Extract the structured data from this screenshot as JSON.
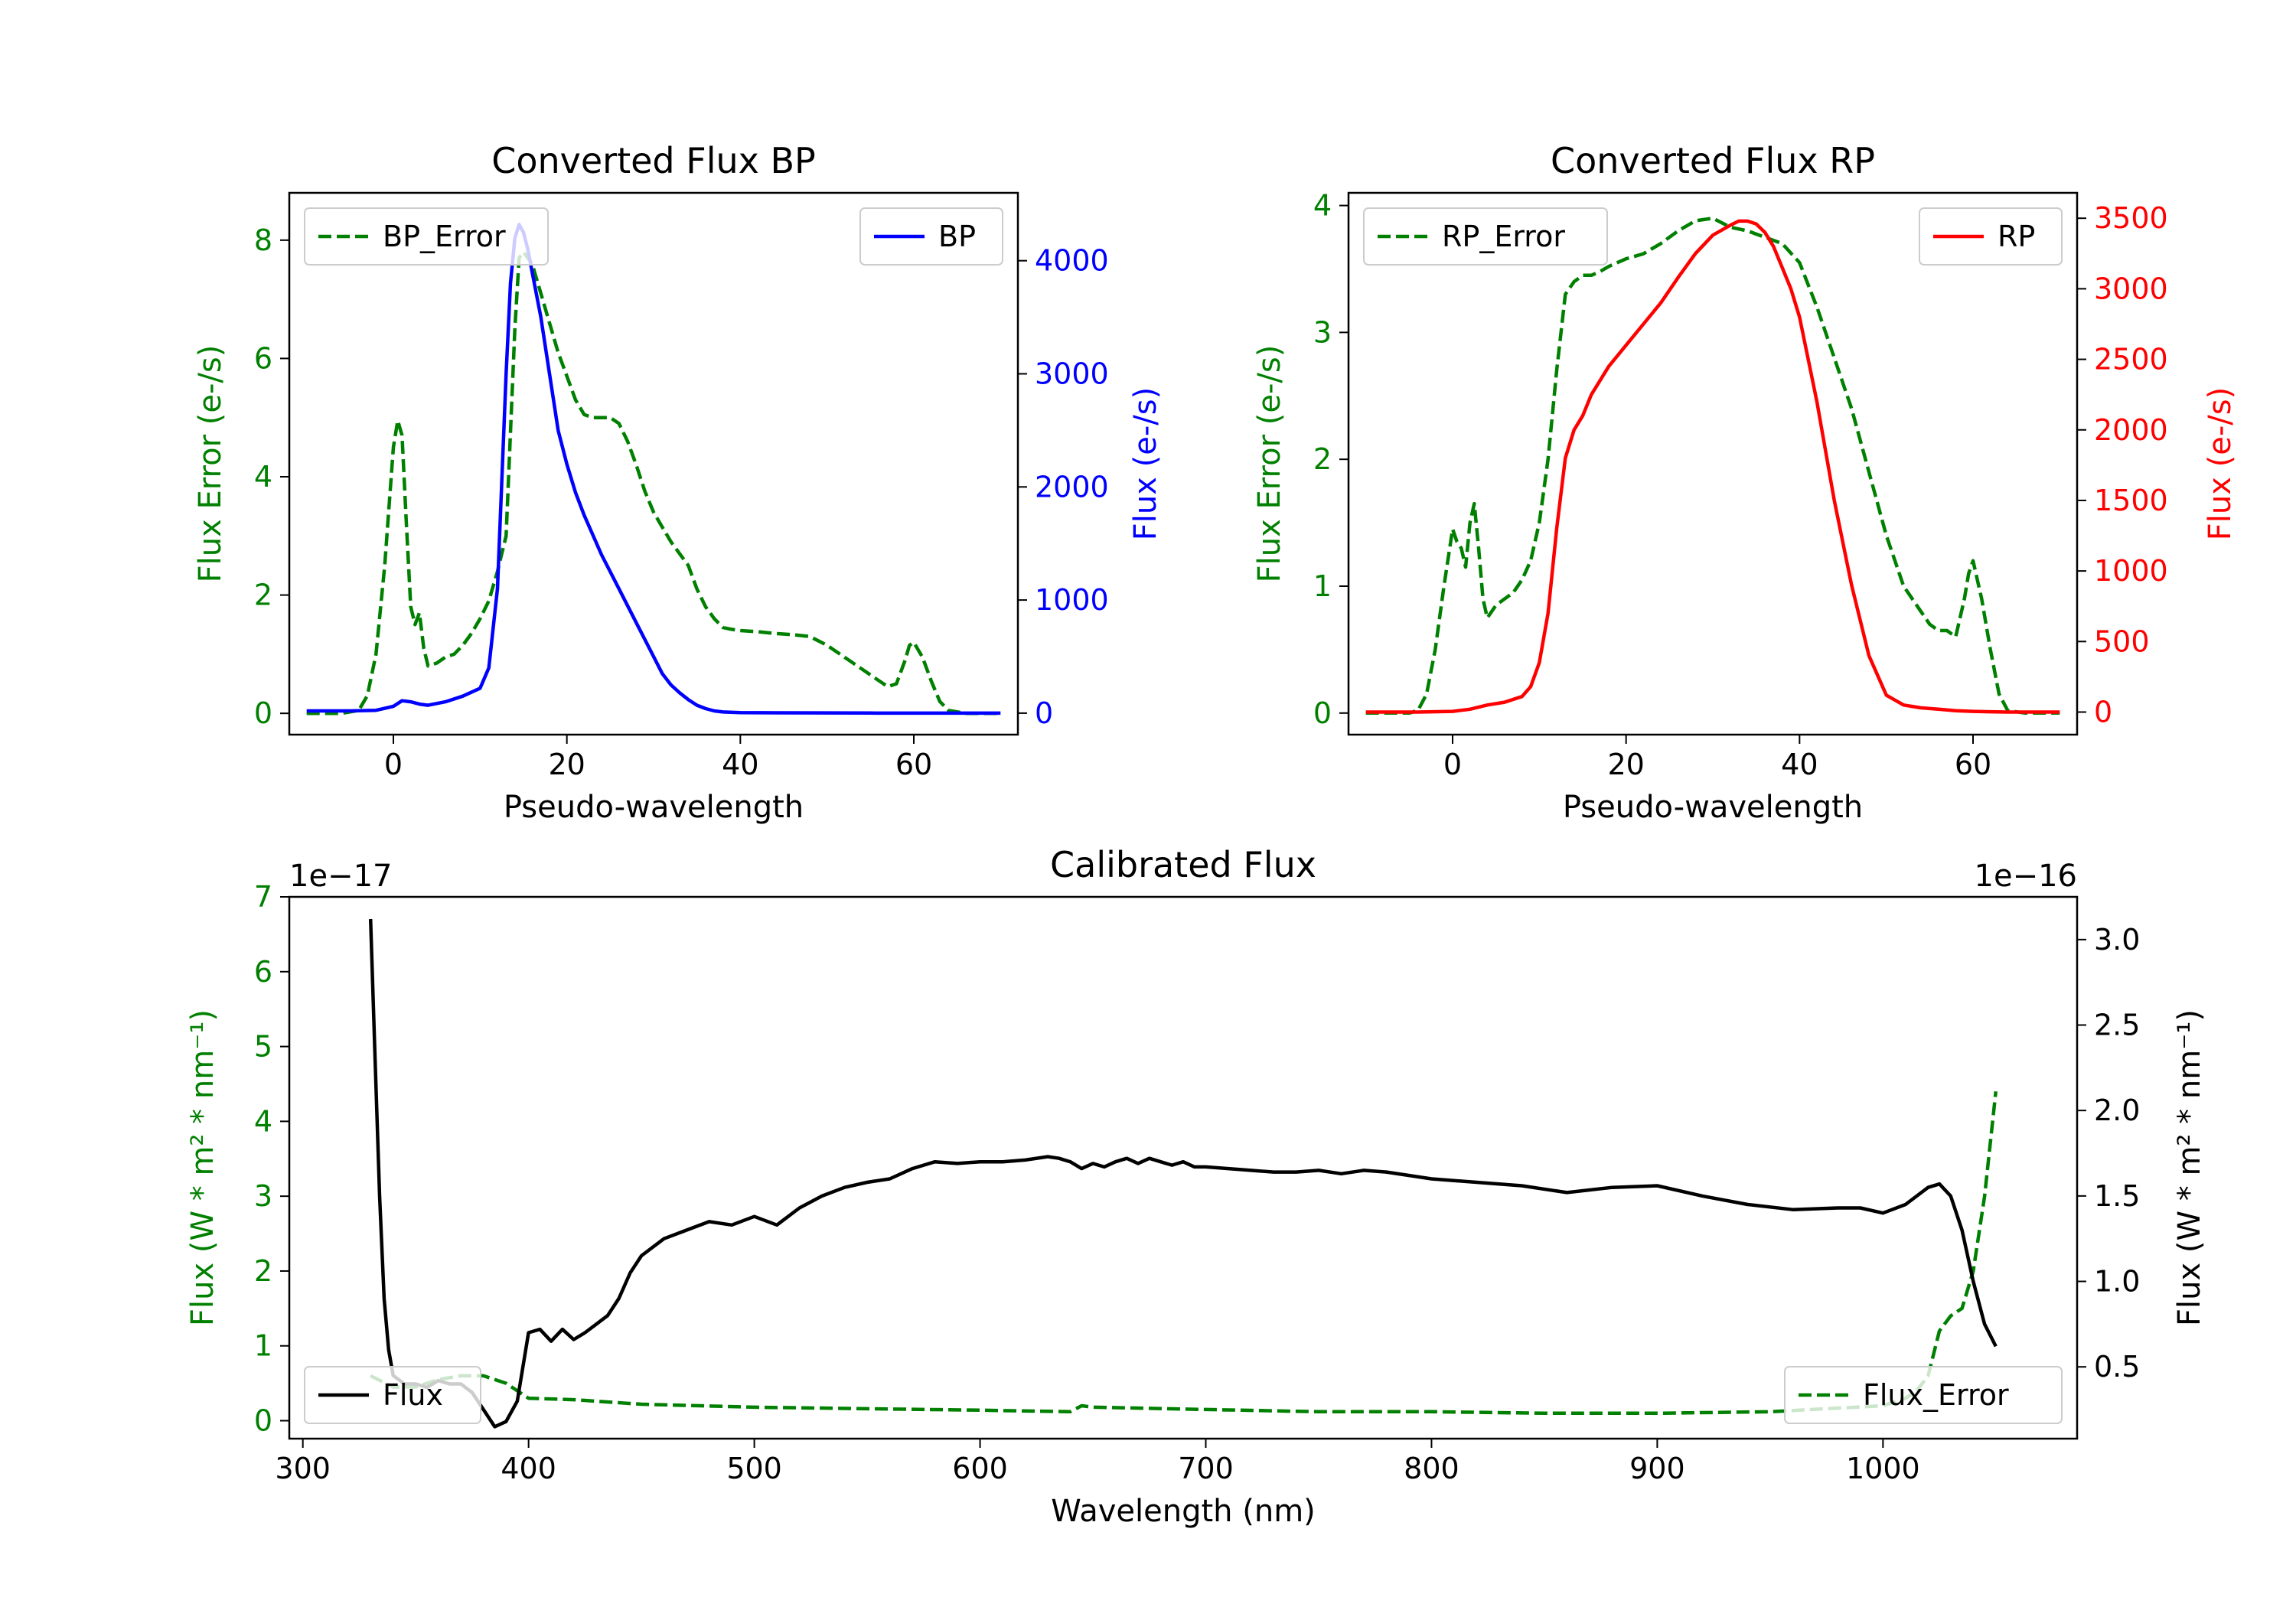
{
  "colors": {
    "green": "#008000",
    "blue": "#0000ff",
    "red": "#ff0000",
    "black": "#000000"
  },
  "chart_data": [
    {
      "id": "bp",
      "type": "line",
      "title": "Converted Flux BP",
      "xlabel": "Pseudo-wavelength",
      "ylabel_left": "Flux Error (e-/s)",
      "ylabel_right": "Flux (e-/s)",
      "xlim": [
        -12,
        72
      ],
      "ylim_left": [
        -0.36,
        8.8
      ],
      "ylim_right": [
        -190,
        4600
      ],
      "xticks": [
        0,
        20,
        40,
        60
      ],
      "yticks_left": [
        0,
        2,
        4,
        6,
        8
      ],
      "yticks_right": [
        0,
        1000,
        2000,
        3000,
        4000
      ],
      "left_color": "green",
      "right_color": "blue",
      "legend_left": {
        "label": "BP_Error",
        "position": "upper left"
      },
      "legend_right": {
        "label": "BP",
        "position": "upper right"
      },
      "series": [
        {
          "name": "BP_Error",
          "axis": "left",
          "style": "dashed",
          "color": "green",
          "x": [
            -10,
            -6,
            -4,
            -3,
            -2,
            -1,
            0,
            0.5,
            1,
            1.5,
            2,
            2.5,
            3,
            3.5,
            4,
            5,
            6,
            7,
            8,
            9,
            10,
            11,
            12,
            13,
            14,
            14.5,
            15,
            16,
            17,
            18,
            19,
            20,
            21,
            22,
            23,
            24,
            25,
            26,
            27,
            28,
            29,
            30,
            31,
            32,
            33,
            34,
            35,
            36,
            37,
            38,
            39,
            40,
            42,
            44,
            46,
            48,
            50,
            52,
            54,
            56,
            57,
            58,
            59,
            59.5,
            60,
            61,
            62,
            63,
            64,
            66,
            70
          ],
          "y": [
            0,
            0,
            0.05,
            0.3,
            1.0,
            2.5,
            4.5,
            4.95,
            4.7,
            3.2,
            1.8,
            1.5,
            1.7,
            1.1,
            0.8,
            0.85,
            0.95,
            1.0,
            1.15,
            1.35,
            1.6,
            1.9,
            2.4,
            3.0,
            6.5,
            7.7,
            7.8,
            7.6,
            7.1,
            6.6,
            6.1,
            5.7,
            5.3,
            5.05,
            5.0,
            5.0,
            5.0,
            4.9,
            4.6,
            4.2,
            3.75,
            3.4,
            3.15,
            2.9,
            2.7,
            2.5,
            2.1,
            1.8,
            1.6,
            1.45,
            1.42,
            1.4,
            1.38,
            1.35,
            1.33,
            1.3,
            1.15,
            0.95,
            0.75,
            0.55,
            0.45,
            0.5,
            0.9,
            1.15,
            1.2,
            0.95,
            0.55,
            0.2,
            0.05,
            0,
            0
          ]
        },
        {
          "name": "BP",
          "axis": "right",
          "style": "solid",
          "color": "blue",
          "x": [
            -10,
            -5,
            -2,
            0,
            1,
            2,
            3,
            4,
            6,
            8,
            10,
            11,
            12,
            13,
            13.5,
            14,
            14.5,
            15,
            15.5,
            16,
            17,
            18,
            19,
            20,
            21,
            22,
            24,
            26,
            28,
            30,
            31,
            32,
            33,
            34,
            35,
            36,
            37,
            38,
            40,
            45,
            50,
            55,
            58,
            60,
            65,
            70
          ],
          "y": [
            20,
            20,
            25,
            60,
            110,
            100,
            80,
            70,
            100,
            150,
            220,
            400,
            1100,
            3000,
            3800,
            4200,
            4320,
            4250,
            4100,
            3900,
            3500,
            3000,
            2500,
            2200,
            1950,
            1750,
            1400,
            1100,
            800,
            500,
            350,
            250,
            180,
            120,
            70,
            40,
            20,
            10,
            5,
            3,
            2,
            1,
            0,
            0,
            0,
            0
          ]
        }
      ]
    },
    {
      "id": "rp",
      "type": "line",
      "title": "Converted Flux RP",
      "xlabel": "Pseudo-wavelength",
      "ylabel_left": "Flux Error (e-/s)",
      "ylabel_right": "Flux (e-/s)",
      "xlim": [
        -12,
        72
      ],
      "ylim_left": [
        -0.17,
        4.1
      ],
      "ylim_right": [
        -160,
        3680
      ],
      "xticks": [
        0,
        20,
        40,
        60
      ],
      "yticks_left": [
        0,
        1,
        2,
        3,
        4
      ],
      "yticks_right": [
        0,
        500,
        1000,
        1500,
        2000,
        2500,
        3000,
        3500
      ],
      "left_color": "green",
      "right_color": "red",
      "legend_left": {
        "label": "RP_Error",
        "position": "upper left"
      },
      "legend_right": {
        "label": "RP",
        "position": "upper right"
      },
      "series": [
        {
          "name": "RP_Error",
          "axis": "left",
          "style": "dashed",
          "color": "green",
          "x": [
            -10,
            -5,
            -4,
            -3,
            -2,
            -1,
            0,
            0.5,
            1,
            1.5,
            2,
            2.5,
            3,
            3.5,
            4,
            5,
            6,
            7,
            8,
            9,
            10,
            11,
            12,
            13,
            14,
            15,
            16,
            17,
            18,
            20,
            22,
            24,
            26,
            28,
            30,
            32,
            34,
            36,
            38,
            40,
            42,
            44,
            46,
            48,
            50,
            52,
            54,
            55,
            56,
            57,
            58,
            59,
            59.5,
            60,
            61,
            62,
            63,
            64,
            66,
            70
          ],
          "y": [
            0,
            0,
            0.02,
            0.15,
            0.5,
            1.0,
            1.45,
            1.35,
            1.3,
            1.15,
            1.5,
            1.65,
            1.3,
            0.9,
            0.75,
            0.85,
            0.9,
            0.95,
            1.05,
            1.2,
            1.5,
            2.0,
            2.7,
            3.3,
            3.4,
            3.45,
            3.45,
            3.48,
            3.52,
            3.58,
            3.62,
            3.7,
            3.8,
            3.88,
            3.9,
            3.83,
            3.8,
            3.75,
            3.7,
            3.55,
            3.2,
            2.8,
            2.4,
            1.9,
            1.4,
            1.0,
            0.8,
            0.7,
            0.65,
            0.65,
            0.6,
            0.9,
            1.1,
            1.2,
            0.9,
            0.5,
            0.15,
            0.02,
            0,
            0
          ]
        },
        {
          "name": "RP",
          "axis": "right",
          "style": "solid",
          "color": "red",
          "x": [
            -10,
            -4,
            0,
            2,
            4,
            6,
            8,
            9,
            10,
            11,
            12,
            13,
            14,
            15,
            16,
            18,
            20,
            22,
            24,
            26,
            28,
            30,
            32,
            33,
            34,
            35,
            36,
            37,
            38,
            39,
            40,
            42,
            44,
            46,
            48,
            50,
            52,
            54,
            56,
            58,
            60,
            62,
            64,
            66,
            70
          ],
          "y": [
            0,
            0,
            5,
            20,
            50,
            70,
            110,
            180,
            350,
            700,
            1300,
            1800,
            2000,
            2100,
            2250,
            2450,
            2600,
            2750,
            2900,
            3080,
            3250,
            3380,
            3450,
            3480,
            3480,
            3460,
            3400,
            3300,
            3150,
            3000,
            2800,
            2200,
            1500,
            900,
            400,
            120,
            50,
            30,
            20,
            10,
            5,
            2,
            0,
            0,
            0
          ]
        }
      ]
    },
    {
      "id": "cal",
      "type": "line",
      "title": "Calibrated Flux",
      "xlabel": "Wavelength (nm)",
      "ylabel_left": "Flux (W * m² * nm⁻¹)",
      "ylabel_right": "Flux (W * m² * nm⁻¹)",
      "offset_left": "1e−17",
      "offset_right": "1e−16",
      "xlim": [
        294,
        1086
      ],
      "ylim_left": [
        -0.24,
        7.0
      ],
      "ylim_right": [
        0.08,
        3.25
      ],
      "xticks": [
        300,
        400,
        500,
        600,
        700,
        800,
        900,
        1000
      ],
      "yticks_left": [
        0,
        1,
        2,
        3,
        4,
        5,
        6,
        7
      ],
      "yticks_right": [
        0.5,
        1.0,
        1.5,
        2.0,
        2.5,
        3.0
      ],
      "yticks_right_labels": [
        "0.5",
        "1.0",
        "1.5",
        "2.0",
        "2.5",
        "3.0"
      ],
      "left_color": "green",
      "right_color": "black",
      "legend_left": {
        "label": "Flux",
        "position": "lower left"
      },
      "legend_right": {
        "label": "Flux_Error",
        "position": "lower right"
      },
      "series": [
        {
          "name": "Flux_Error",
          "axis": "left",
          "style": "dashed",
          "color": "green",
          "x": [
            330,
            340,
            350,
            360,
            370,
            380,
            390,
            400,
            420,
            450,
            500,
            550,
            600,
            640,
            645,
            650,
            700,
            750,
            800,
            850,
            900,
            950,
            1000,
            1010,
            1015,
            1020,
            1025,
            1030,
            1035,
            1040,
            1045,
            1050
          ],
          "y": [
            0.6,
            0.45,
            0.45,
            0.55,
            0.6,
            0.6,
            0.5,
            0.3,
            0.28,
            0.22,
            0.18,
            0.16,
            0.14,
            0.12,
            0.2,
            0.18,
            0.15,
            0.12,
            0.12,
            0.1,
            0.1,
            0.12,
            0.2,
            0.3,
            0.4,
            0.6,
            1.2,
            1.4,
            1.5,
            2.0,
            3.0,
            4.4
          ]
        },
        {
          "name": "Flux",
          "axis": "right",
          "style": "solid",
          "color": "black",
          "x": [
            330,
            332,
            334,
            336,
            338,
            340,
            345,
            350,
            355,
            360,
            365,
            370,
            375,
            380,
            385,
            390,
            395,
            400,
            405,
            410,
            415,
            420,
            425,
            430,
            435,
            440,
            445,
            450,
            460,
            470,
            480,
            490,
            500,
            510,
            520,
            530,
            540,
            550,
            560,
            570,
            580,
            590,
            600,
            610,
            620,
            630,
            635,
            640,
            645,
            650,
            655,
            660,
            665,
            670,
            675,
            680,
            685,
            690,
            695,
            700,
            710,
            720,
            730,
            740,
            750,
            760,
            770,
            780,
            800,
            820,
            840,
            860,
            880,
            900,
            920,
            940,
            960,
            980,
            990,
            1000,
            1010,
            1020,
            1025,
            1030,
            1035,
            1040,
            1045,
            1050
          ],
          "y": [
            3.12,
            2.3,
            1.5,
            0.9,
            0.6,
            0.45,
            0.4,
            0.4,
            0.38,
            0.42,
            0.4,
            0.4,
            0.35,
            0.25,
            0.15,
            0.18,
            0.3,
            0.7,
            0.72,
            0.65,
            0.72,
            0.66,
            0.7,
            0.75,
            0.8,
            0.9,
            1.05,
            1.15,
            1.25,
            1.3,
            1.35,
            1.33,
            1.38,
            1.33,
            1.43,
            1.5,
            1.55,
            1.58,
            1.6,
            1.66,
            1.7,
            1.69,
            1.7,
            1.7,
            1.71,
            1.73,
            1.72,
            1.7,
            1.66,
            1.69,
            1.67,
            1.7,
            1.72,
            1.69,
            1.72,
            1.7,
            1.68,
            1.7,
            1.67,
            1.67,
            1.66,
            1.65,
            1.64,
            1.64,
            1.65,
            1.63,
            1.65,
            1.64,
            1.6,
            1.58,
            1.56,
            1.52,
            1.55,
            1.56,
            1.5,
            1.45,
            1.42,
            1.43,
            1.43,
            1.4,
            1.45,
            1.55,
            1.57,
            1.5,
            1.3,
            1.0,
            0.75,
            0.62
          ]
        }
      ]
    }
  ]
}
